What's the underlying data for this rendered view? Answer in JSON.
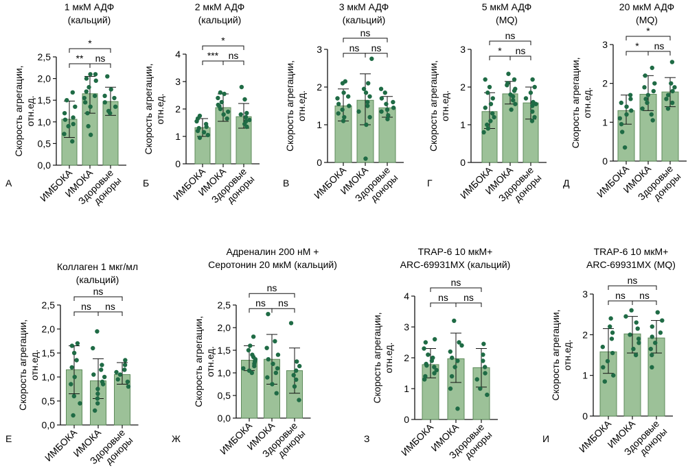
{
  "figure": {
    "colors": {
      "bar_fill": "#9cc198",
      "bar_stroke": "#5d8a5a",
      "point": "#1f6b45",
      "axis": "#111111"
    }
  },
  "chart_data": [
    {
      "panel_letter": "А",
      "type": "bar",
      "title": [
        "1 мкМ АДФ",
        "(кальций)"
      ],
      "ylabel": [
        "Скорость агрегации,",
        "отн.ед."
      ],
      "categories": [
        "ИМБОКА",
        "ИМОКА",
        "Здоровые доноры"
      ],
      "category_labels": [
        [
          "ИМБОКА"
        ],
        [
          "ИМОКА"
        ],
        [
          "Здоровые",
          "доноры"
        ]
      ],
      "ylim": [
        0,
        2.5
      ],
      "yticks": [
        "0,0",
        "0,5",
        "1,0",
        "1,5",
        "2,0",
        "2,5"
      ],
      "bars": [
        {
          "mean": 1.06,
          "sd": [
            0.64,
            1.48
          ],
          "points": [
            0.55,
            0.72,
            0.9,
            0.95,
            1.05,
            1.1,
            1.2,
            1.35,
            1.5,
            1.68
          ]
        },
        {
          "mean": 1.65,
          "sd": [
            1.2,
            2.05
          ],
          "points": [
            0.7,
            0.9,
            1.2,
            1.35,
            1.45,
            1.55,
            1.6,
            1.7,
            1.8,
            1.95,
            2.0,
            2.1,
            2.1
          ]
        },
        {
          "mean": 1.47,
          "sd": [
            1.15,
            1.8
          ],
          "points": [
            1.2,
            1.25,
            1.35,
            1.45,
            1.55,
            1.6,
            1.75,
            2.05
          ]
        }
      ],
      "brackets": [
        {
          "from": 0,
          "to": 2,
          "label": "*",
          "top": true
        },
        {
          "from": 0,
          "to": 1,
          "label": "**",
          "top": false
        },
        {
          "from": 1,
          "to": 2,
          "label": "ns",
          "top": false
        }
      ]
    },
    {
      "panel_letter": "Б",
      "type": "bar",
      "title": [
        "2 мкМ АДФ",
        "(кальций)"
      ],
      "ylabel": [
        "Скорость агрегации,",
        "отн.ед."
      ],
      "categories": [
        "ИМБОКА",
        "ИМОКА",
        "Здоровые доноры"
      ],
      "category_labels": [
        [
          "ИМБОКА"
        ],
        [
          "ИМОКА"
        ],
        [
          "Здоровые",
          "доноры"
        ]
      ],
      "ylim": [
        0,
        4
      ],
      "yticks": [
        "0",
        "1",
        "2",
        "3",
        "4"
      ],
      "bars": [
        {
          "mean": 1.32,
          "sd": [
            1.0,
            1.65
          ],
          "points": [
            0.95,
            1.05,
            1.15,
            1.2,
            1.3,
            1.35,
            1.45,
            1.55,
            1.65,
            1.75
          ]
        },
        {
          "mean": 2.05,
          "sd": [
            1.55,
            2.55
          ],
          "points": [
            1.65,
            1.8,
            1.9,
            2.0,
            2.1,
            2.15,
            2.25,
            2.4,
            2.55,
            2.6
          ]
        },
        {
          "mean": 1.72,
          "sd": [
            1.3,
            2.2
          ],
          "points": [
            1.35,
            1.45,
            1.55,
            1.6,
            1.7,
            1.8,
            1.85,
            2.35,
            2.8
          ]
        }
      ],
      "brackets": [
        {
          "from": 0,
          "to": 2,
          "label": "*",
          "top": true
        },
        {
          "from": 0,
          "to": 1,
          "label": "***",
          "top": false
        },
        {
          "from": 1,
          "to": 2,
          "label": "ns",
          "top": false
        }
      ]
    },
    {
      "panel_letter": "В",
      "type": "bar",
      "title": [
        "3 мкМ АДФ",
        "(кальций)"
      ],
      "ylabel": [
        "Скорость агрегации,",
        "отн.ед."
      ],
      "categories": [
        "ИМБОКА",
        "ИМОКА",
        "Здоровые доноры"
      ],
      "category_labels": [
        [
          "ИМБОКА"
        ],
        [
          "ИМОКА"
        ],
        [
          "Здоровые",
          "доноры"
        ]
      ],
      "ylim": [
        0,
        3
      ],
      "yticks": [
        "0",
        "1",
        "2",
        "3"
      ],
      "bars": [
        {
          "mean": 1.5,
          "sd": [
            1.1,
            1.95
          ],
          "points": [
            1.1,
            1.2,
            1.3,
            1.4,
            1.5,
            1.55,
            1.7,
            1.75,
            1.85,
            2.1,
            2.15
          ]
        },
        {
          "mean": 1.65,
          "sd": [
            1.0,
            2.35
          ],
          "points": [
            0.1,
            1.0,
            1.2,
            1.35,
            1.5,
            1.6,
            1.75,
            1.85,
            1.95,
            2.1,
            2.75
          ]
        },
        {
          "mean": 1.45,
          "sd": [
            1.2,
            1.75
          ],
          "points": [
            1.15,
            1.25,
            1.35,
            1.4,
            1.45,
            1.55,
            1.6,
            1.7,
            1.85,
            1.95
          ]
        }
      ],
      "brackets": [
        {
          "from": 0,
          "to": 2,
          "label": "ns",
          "top": true
        },
        {
          "from": 0,
          "to": 1,
          "label": "ns",
          "top": false
        },
        {
          "from": 1,
          "to": 2,
          "label": "ns",
          "top": false
        }
      ]
    },
    {
      "panel_letter": "Г",
      "type": "bar",
      "title": [
        "5 мкМ АДФ",
        "(MQ)"
      ],
      "ylabel": [
        "Скорость агрегации,",
        "отн.ед."
      ],
      "categories": [
        "ИМБОКА",
        "ИМОКА",
        "Здоровые доноры"
      ],
      "category_labels": [
        [
          "ИМБОКА"
        ],
        [
          "ИМОКА"
        ],
        [
          "Здоровые",
          "доноры"
        ]
      ],
      "ylim": [
        0,
        3
      ],
      "yticks": [
        "0",
        "1",
        "2",
        "3"
      ],
      "bars": [
        {
          "mean": 1.35,
          "sd": [
            0.9,
            1.85
          ],
          "points": [
            0.8,
            0.9,
            1.0,
            1.1,
            1.2,
            1.3,
            1.45,
            1.55,
            1.7,
            1.85,
            2.0,
            2.2
          ]
        },
        {
          "mean": 1.82,
          "sd": [
            1.55,
            2.15
          ],
          "points": [
            1.4,
            1.55,
            1.65,
            1.75,
            1.8,
            1.9,
            1.95,
            2.05,
            2.1,
            2.2,
            2.35
          ]
        },
        {
          "mean": 1.58,
          "sd": [
            1.15,
            2.0
          ],
          "points": [
            1.1,
            1.2,
            1.35,
            1.5,
            1.55,
            1.6,
            1.7,
            1.85,
            2.0,
            2.2
          ]
        }
      ],
      "brackets": [
        {
          "from": 0,
          "to": 2,
          "label": "ns",
          "top": true
        },
        {
          "from": 0,
          "to": 1,
          "label": "*",
          "top": false
        },
        {
          "from": 1,
          "to": 2,
          "label": "ns",
          "top": false
        }
      ]
    },
    {
      "panel_letter": "Д",
      "type": "bar",
      "title": [
        "20 мкМ АДФ",
        "(MQ)"
      ],
      "ylabel": [
        "Скорость агрегации,",
        "отн.ед."
      ],
      "categories": [
        "ИМБОКА",
        "ИМОКА",
        "Здоровые доноры"
      ],
      "category_labels": [
        [
          "ИМБОКА"
        ],
        [
          "ИМОКА"
        ],
        [
          "Здоровые",
          "доноры"
        ]
      ],
      "ylim": [
        0,
        3
      ],
      "yticks": [
        "0",
        "1",
        "2",
        "3"
      ],
      "bars": [
        {
          "mean": 1.3,
          "sd": [
            0.95,
            1.7
          ],
          "points": [
            0.35,
            0.75,
            0.95,
            1.1,
            1.2,
            1.3,
            1.4,
            1.5,
            1.6,
            1.7
          ]
        },
        {
          "mean": 1.72,
          "sd": [
            1.3,
            2.2
          ],
          "points": [
            1.05,
            1.2,
            1.35,
            1.5,
            1.6,
            1.7,
            1.8,
            1.9,
            2.0,
            2.2,
            2.4
          ]
        },
        {
          "mean": 1.78,
          "sd": [
            1.4,
            2.15
          ],
          "points": [
            1.35,
            1.5,
            1.6,
            1.7,
            1.8,
            1.9,
            2.0,
            2.55
          ]
        }
      ],
      "brackets": [
        {
          "from": 0,
          "to": 2,
          "label": "*",
          "top": true
        },
        {
          "from": 0,
          "to": 1,
          "label": "*",
          "top": false
        },
        {
          "from": 1,
          "to": 2,
          "label": "ns",
          "top": false
        }
      ]
    },
    {
      "panel_letter": "Е",
      "type": "bar",
      "title": [
        "Коллаген 1 мкг/мл",
        "(кальций)"
      ],
      "ylabel": [
        "Скорость агрегации,",
        "отн.ед."
      ],
      "categories": [
        "ИМБОКА",
        "ИМОКА",
        "Здоровые доноры"
      ],
      "category_labels": [
        [
          "ИМБОКА"
        ],
        [
          "ИМОКА"
        ],
        [
          "Здоровые",
          "доноры"
        ]
      ],
      "ylim": [
        0,
        2.5
      ],
      "yticks": [
        "0,0",
        "0,5",
        "1,0",
        "1,5",
        "2,0",
        "2,5"
      ],
      "bars": [
        {
          "mean": 1.15,
          "sd": [
            0.65,
            1.65
          ],
          "points": [
            0.2,
            0.45,
            0.6,
            0.85,
            1.0,
            1.2,
            1.35,
            1.5,
            1.65,
            1.7
          ]
        },
        {
          "mean": 0.92,
          "sd": [
            0.55,
            1.38
          ],
          "points": [
            0.3,
            0.45,
            0.55,
            0.65,
            0.75,
            0.85,
            0.9,
            1.0,
            1.05,
            1.15,
            1.25,
            1.6,
            1.95
          ]
        },
        {
          "mean": 1.05,
          "sd": [
            0.85,
            1.3
          ],
          "points": [
            0.8,
            0.9,
            0.95,
            1.05,
            1.1,
            1.15,
            1.25,
            1.35
          ]
        }
      ],
      "brackets": [
        {
          "from": 0,
          "to": 2,
          "label": "ns",
          "top": true
        },
        {
          "from": 0,
          "to": 1,
          "label": "ns",
          "top": false
        },
        {
          "from": 1,
          "to": 2,
          "label": "ns",
          "top": false
        }
      ]
    },
    {
      "panel_letter": "Ж",
      "type": "bar",
      "title": [
        "Адреналин  200 нМ +",
        "Серотонин 20 мкМ (кальций)"
      ],
      "ylabel": [
        "Скорость агрегации,",
        "отн.ед."
      ],
      "categories": [
        "ИМБОКА",
        "ИМОКА",
        "Здоровые доноры"
      ],
      "category_labels": [
        [
          "ИМБОКА"
        ],
        [
          "ИМОКА"
        ],
        [
          "Здоровые",
          "доноры"
        ]
      ],
      "ylim": [
        0,
        2.5
      ],
      "yticks": [
        "0,0",
        "0,5",
        "1,0",
        "1,5",
        "2,0",
        "2,5"
      ],
      "bars": [
        {
          "mean": 1.28,
          "sd": [
            1.05,
            1.6
          ],
          "points": [
            1.0,
            1.05,
            1.1,
            1.15,
            1.2,
            1.25,
            1.3,
            1.35,
            1.4,
            1.5,
            1.6,
            1.8
          ]
        },
        {
          "mean": 1.3,
          "sd": [
            0.75,
            1.85
          ],
          "points": [
            0.55,
            0.75,
            0.9,
            1.0,
            1.1,
            1.2,
            1.3,
            1.4,
            1.55,
            1.7,
            2.3
          ]
        },
        {
          "mean": 1.05,
          "sd": [
            0.55,
            1.55
          ],
          "points": [
            0.4,
            0.7,
            0.85,
            0.95,
            1.05,
            1.15,
            1.25,
            2.1
          ]
        }
      ],
      "brackets": [
        {
          "from": 0,
          "to": 2,
          "label": "ns",
          "top": true
        },
        {
          "from": 0,
          "to": 1,
          "label": "ns",
          "top": false
        },
        {
          "from": 1,
          "to": 2,
          "label": "ns",
          "top": false
        }
      ]
    },
    {
      "panel_letter": "З",
      "type": "bar",
      "title": [
        "TRAP-6 10 мкМ+",
        "ARC-69931MX (кальций)"
      ],
      "ylabel": [
        "Скорость агрегации,",
        "отн.ед."
      ],
      "categories": [
        "ИМБОКА",
        "ИМОКА",
        "Здоровые доноры"
      ],
      "category_labels": [
        [
          "ИМБОКА"
        ],
        [
          "ИМОКА"
        ],
        [
          "Здоровые",
          "доноры"
        ]
      ],
      "ylim": [
        0,
        4
      ],
      "yticks": [
        "0",
        "1",
        "2",
        "3",
        "4"
      ],
      "bars": [
        {
          "mean": 1.78,
          "sd": [
            1.35,
            2.3
          ],
          "points": [
            1.3,
            1.4,
            1.5,
            1.6,
            1.7,
            1.75,
            1.8,
            1.9,
            2.0,
            2.1,
            2.3,
            2.5,
            2.6
          ]
        },
        {
          "mean": 1.97,
          "sd": [
            1.2,
            2.8
          ],
          "points": [
            0.35,
            1.0,
            1.4,
            1.7,
            1.9,
            2.0,
            2.2,
            2.4,
            2.5,
            3.2
          ]
        },
        {
          "mean": 1.68,
          "sd": [
            1.05,
            2.3
          ],
          "points": [
            0.8,
            1.0,
            1.3,
            1.5,
            1.7,
            1.9,
            2.1,
            2.45
          ]
        }
      ],
      "brackets": [
        {
          "from": 0,
          "to": 2,
          "label": "ns",
          "top": true
        },
        {
          "from": 0,
          "to": 1,
          "label": "ns",
          "top": false
        },
        {
          "from": 1,
          "to": 2,
          "label": "ns",
          "top": false
        }
      ]
    },
    {
      "panel_letter": "И",
      "type": "bar",
      "title": [
        "TRAP-6 10 мкМ+",
        "ARC-69931MX (MQ)"
      ],
      "ylabel": [
        "Скорость агрегации,",
        "отн.ед."
      ],
      "categories": [
        "ИМБОКА",
        "ИМОКА",
        "Здоровые доноры"
      ],
      "category_labels": [
        [
          "ИМБОКА"
        ],
        [
          "ИМОКА"
        ],
        [
          "Здоровые",
          "доноры"
        ]
      ],
      "ylim": [
        0,
        3
      ],
      "yticks": [
        "0",
        "1",
        "2",
        "3"
      ],
      "bars": [
        {
          "mean": 1.58,
          "sd": [
            1.05,
            2.15
          ],
          "points": [
            0.85,
            1.0,
            1.2,
            1.35,
            1.55,
            1.7,
            1.9,
            2.05,
            2.2,
            2.4
          ]
        },
        {
          "mean": 2.02,
          "sd": [
            1.55,
            2.45
          ],
          "points": [
            1.5,
            1.65,
            1.8,
            1.9,
            2.0,
            2.15,
            2.3,
            2.45,
            2.6
          ]
        },
        {
          "mean": 1.92,
          "sd": [
            1.55,
            2.35
          ],
          "points": [
            1.2,
            1.5,
            1.65,
            1.8,
            1.95,
            2.05,
            2.2,
            2.35,
            2.55
          ]
        }
      ],
      "brackets": [
        {
          "from": 0,
          "to": 2,
          "label": "ns",
          "top": true
        },
        {
          "from": 0,
          "to": 1,
          "label": "ns",
          "top": false
        },
        {
          "from": 1,
          "to": 2,
          "label": "ns",
          "top": false
        }
      ]
    }
  ]
}
